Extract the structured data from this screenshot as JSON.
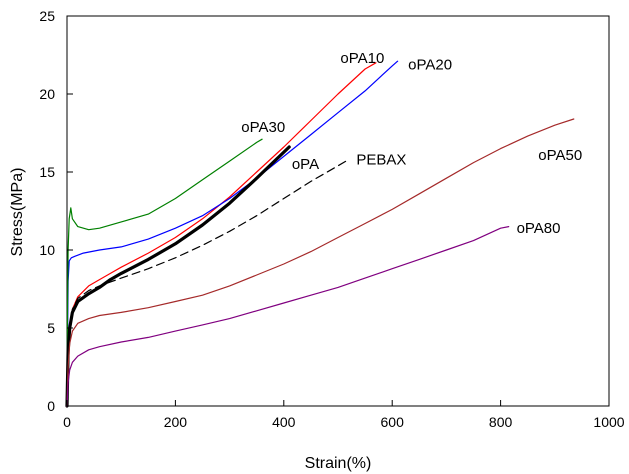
{
  "chart_data": {
    "type": "line",
    "title": "",
    "xlabel": "Strain(%)",
    "ylabel": "Stress(MPa)",
    "xlim": [
      0,
      1000
    ],
    "ylim": [
      0,
      25
    ],
    "xticks": [
      0,
      200,
      400,
      600,
      800,
      1000
    ],
    "yticks": [
      0,
      5,
      10,
      15,
      20,
      25
    ],
    "grid": false,
    "legend": "none",
    "series": [
      {
        "name": "oPA10",
        "color": "#ff0000",
        "dash": "solid",
        "width": 1.2,
        "label": {
          "text": "oPA10",
          "at": [
            545,
            22.3
          ]
        },
        "x": [
          0,
          2,
          5,
          10,
          20,
          40,
          60,
          80,
          100,
          150,
          200,
          250,
          300,
          350,
          400,
          450,
          500,
          550,
          570
        ],
        "y": [
          0,
          3,
          5,
          6.2,
          7.0,
          7.7,
          8.1,
          8.5,
          8.9,
          9.8,
          10.8,
          12.0,
          13.4,
          15.0,
          16.6,
          18.3,
          20.0,
          21.6,
          22.0
        ]
      },
      {
        "name": "oPA20",
        "color": "#0000ff",
        "dash": "solid",
        "width": 1.2,
        "label": {
          "text": "oPA20",
          "at": [
            670,
            21.9
          ]
        },
        "x": [
          0,
          1,
          2,
          4,
          8,
          15,
          30,
          60,
          100,
          150,
          200,
          250,
          300,
          350,
          400,
          450,
          500,
          550,
          600,
          610
        ],
        "y": [
          0,
          4,
          8,
          9.3,
          9.5,
          9.6,
          9.8,
          10.0,
          10.2,
          10.7,
          11.4,
          12.2,
          13.3,
          14.6,
          16.0,
          17.4,
          18.8,
          20.2,
          21.8,
          22.1
        ]
      },
      {
        "name": "oPA30",
        "color": "#008000",
        "dash": "solid",
        "width": 1.2,
        "label": {
          "text": "oPA30",
          "at": [
            362,
            17.9
          ]
        },
        "x": [
          0,
          1,
          2,
          4,
          7,
          10,
          20,
          40,
          60,
          100,
          150,
          200,
          250,
          300,
          350,
          360
        ],
        "y": [
          0,
          6,
          10,
          12.0,
          12.7,
          12.0,
          11.5,
          11.3,
          11.4,
          11.8,
          12.3,
          13.3,
          14.5,
          15.7,
          16.9,
          17.1
        ]
      },
      {
        "name": "oPA",
        "color": "#000000",
        "dash": "solid",
        "width": 3.2,
        "label": {
          "text": "oPA",
          "at": [
            440,
            15.5
          ]
        },
        "x": [
          0,
          2,
          5,
          10,
          20,
          40,
          60,
          80,
          100,
          150,
          200,
          250,
          300,
          350,
          410
        ],
        "y": [
          0,
          3.5,
          5,
          6.0,
          6.7,
          7.2,
          7.6,
          8.1,
          8.5,
          9.4,
          10.4,
          11.6,
          13.0,
          14.6,
          16.6
        ]
      },
      {
        "name": "PEBAX",
        "color": "#000000",
        "dash": "dashed",
        "width": 1.2,
        "label": {
          "text": "PEBAX",
          "at": [
            580,
            15.8
          ]
        },
        "x": [
          0,
          2,
          5,
          10,
          20,
          40,
          60,
          100,
          150,
          200,
          250,
          300,
          350,
          400,
          450,
          500,
          520
        ],
        "y": [
          0,
          3,
          5,
          6.2,
          6.9,
          7.4,
          7.7,
          8.2,
          8.8,
          9.5,
          10.3,
          11.2,
          12.2,
          13.3,
          14.4,
          15.4,
          15.8
        ]
      },
      {
        "name": "oPA50",
        "color": "#a52a2a",
        "dash": "solid",
        "width": 1.2,
        "label": {
          "text": "oPA50",
          "at": [
            910,
            16.1
          ]
        },
        "x": [
          0,
          2,
          5,
          10,
          20,
          40,
          60,
          100,
          150,
          200,
          250,
          300,
          350,
          400,
          450,
          500,
          550,
          600,
          650,
          700,
          750,
          800,
          850,
          900,
          935
        ],
        "y": [
          0,
          2.5,
          4.0,
          4.8,
          5.3,
          5.6,
          5.8,
          6.0,
          6.3,
          6.7,
          7.1,
          7.7,
          8.4,
          9.1,
          9.9,
          10.8,
          11.7,
          12.6,
          13.6,
          14.6,
          15.6,
          16.5,
          17.3,
          18.0,
          18.4
        ]
      },
      {
        "name": "oPA80",
        "color": "#800080",
        "dash": "solid",
        "width": 1.2,
        "label": {
          "text": "oPA80",
          "at": [
            870,
            11.4
          ]
        },
        "x": [
          0,
          2,
          5,
          10,
          20,
          40,
          60,
          100,
          150,
          200,
          250,
          300,
          350,
          400,
          450,
          500,
          550,
          600,
          650,
          700,
          750,
          800,
          815
        ],
        "y": [
          0,
          1.5,
          2.3,
          2.8,
          3.2,
          3.6,
          3.8,
          4.1,
          4.4,
          4.8,
          5.2,
          5.6,
          6.1,
          6.6,
          7.1,
          7.6,
          8.2,
          8.8,
          9.4,
          10.0,
          10.6,
          11.4,
          11.5
        ]
      }
    ]
  }
}
